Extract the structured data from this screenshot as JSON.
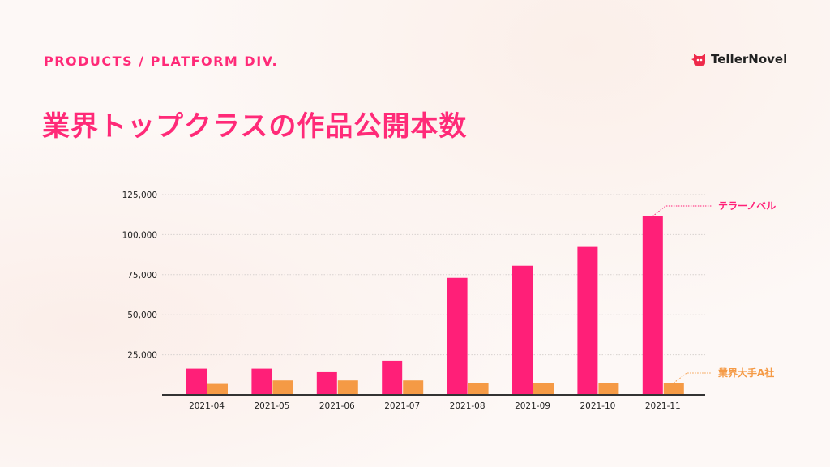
{
  "header": {
    "kicker": "PRODUCTS / PLATFORM DIV.",
    "title": "業界トップクラスの作品公開本数",
    "logo": "TellerNovel"
  },
  "colors": {
    "accent": "#ff1f78",
    "competitor": "#f59a45"
  },
  "chart_data": {
    "type": "bar",
    "title": "業界トップクラスの作品公開本数",
    "xlabel": "",
    "ylabel": "",
    "categories": [
      "2021-04",
      "2021-05",
      "2021-06",
      "2021-07",
      "2021-08",
      "2021-09",
      "2021-10",
      "2021-11"
    ],
    "series": [
      {
        "name": "テラーノベル",
        "color": "#ff1f78",
        "values": [
          16400,
          16400,
          14200,
          21300,
          73000,
          80600,
          92300,
          111500
        ]
      },
      {
        "name": "業界大手A社",
        "color": "#f59a45",
        "values": [
          6800,
          9000,
          9000,
          9000,
          7500,
          7500,
          7500,
          7500
        ]
      }
    ],
    "ylim": [
      0,
      125000
    ],
    "yticks": [
      "25,000",
      "50,000",
      "75,000",
      "100,000",
      "125,000"
    ],
    "ytick_values": [
      25000,
      50000,
      75000,
      100000,
      125000
    ],
    "grid": true,
    "legend": "right, labels at series ends"
  }
}
